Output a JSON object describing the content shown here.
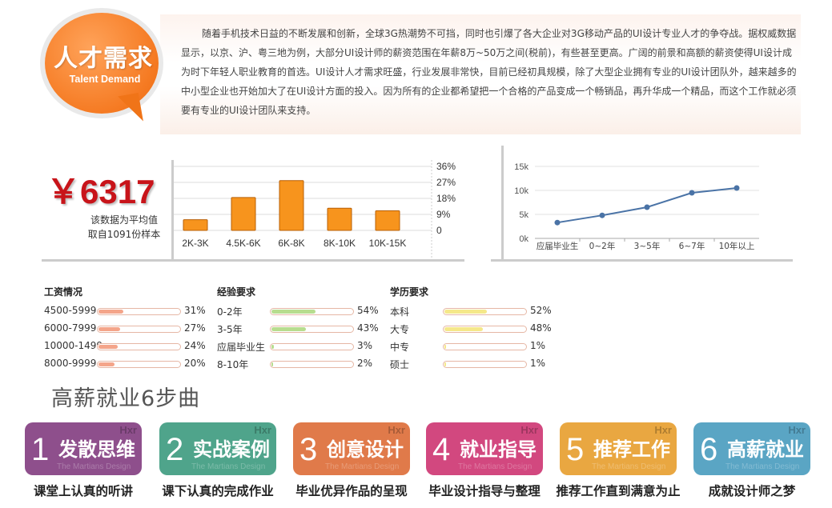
{
  "intro": {
    "title": "人才需求",
    "subtitle": "Talent Demand",
    "text": "随着手机技术日益的不断发展和创新，全球3G热潮势不可挡，同时也引爆了各大企业对3G移动产品的UI设计专业人才的争夺战。据权威数据显示，以京、沪、粤三地为例，大部分UI设计师的薪资范围在年薪8万~50万之间(税前)，有些甚至更高。广阔的前景和高额的薪资使得UI设计成为时下年轻人职业教育的首选。UI设计人才需求旺盛，行业发展非常快，目前已经初具规模，除了大型企业拥有专业的UI设计团队外，越来越多的中小型企业也开始加大了在UI设计方面的投入。因为所有的企业都希望把一个合格的产品变成一个畅销品，再升华成一个精品，而这个工作就必须要有专业的UI设计团队来支持。"
  },
  "salary": {
    "value": "￥6317",
    "note_line1": "该数据为平均值",
    "note_line2": "取自1091份样本"
  },
  "chart_data": [
    {
      "type": "bar",
      "categories": [
        "2K-3K",
        "4.5K-6K",
        "6K-8K",
        "8K-10K",
        "10K-15K"
      ],
      "values": [
        6,
        18.5,
        28,
        12.5,
        11
      ],
      "yticks": [
        "36%",
        "27%",
        "18%",
        "9%",
        "0"
      ],
      "ylim": [
        0,
        36
      ],
      "color": "#f7941d"
    },
    {
      "type": "line",
      "categories": [
        "应届毕业生",
        "0~2年",
        "3~5年",
        "6~7年",
        "10年以上"
      ],
      "values": [
        3300,
        4800,
        6500,
        9500,
        10500
      ],
      "yticks": [
        "15k",
        "10k",
        "5k",
        "0k"
      ],
      "ylim": [
        0,
        15000
      ],
      "color": "#4a73a6"
    }
  ],
  "stats": {
    "salary": {
      "title": "工资情况",
      "color": "#f4a58a",
      "rows": [
        {
          "label": "4500-5999",
          "pct": "31%",
          "value": 31
        },
        {
          "label": "6000-7999",
          "pct": "27%",
          "value": 27
        },
        {
          "label": "10000-1499",
          "pct": "24%",
          "value": 24
        },
        {
          "label": "8000-9999",
          "pct": "20%",
          "value": 20
        }
      ]
    },
    "experience": {
      "title": "经验要求",
      "color": "#b7dd8f",
      "rows": [
        {
          "label": "0-2年",
          "pct": "54%",
          "value": 54
        },
        {
          "label": "3-5年",
          "pct": "43%",
          "value": 43
        },
        {
          "label": "应届毕业生",
          "pct": "3%",
          "value": 3
        },
        {
          "label": "8-10年",
          "pct": "2%",
          "value": 2
        }
      ]
    },
    "education": {
      "title": "学历要求",
      "color": "#f5e88a",
      "rows": [
        {
          "label": "本科",
          "pct": "52%",
          "value": 52
        },
        {
          "label": "大专",
          "pct": "48%",
          "value": 48
        },
        {
          "label": "中专",
          "pct": "1%",
          "value": 1
        },
        {
          "label": "硕士",
          "pct": "1%",
          "value": 1
        }
      ]
    }
  },
  "steps": {
    "heading": "高薪就业6步曲",
    "watermark": "Hxr",
    "watermark_sub": "The Martians Design",
    "items": [
      {
        "num": "1",
        "name": "发散思维",
        "desc": "课堂上认真的听讲",
        "color": "#8e4f8c"
      },
      {
        "num": "2",
        "name": "实战案例",
        "desc": "课下认真的完成作业",
        "color": "#4fa48b"
      },
      {
        "num": "3",
        "name": "创意设计",
        "desc": "毕业优异作品的呈现",
        "color": "#e07a4a"
      },
      {
        "num": "4",
        "name": "就业指导",
        "desc": "毕业设计指导与整理",
        "color": "#d2487f"
      },
      {
        "num": "5",
        "name": "推荐工作",
        "desc": "推荐工作直到满意为止",
        "color": "#e9a741"
      },
      {
        "num": "6",
        "name": "高薪就业",
        "desc": "成就设计师之梦",
        "color": "#5aa5c4"
      }
    ]
  }
}
